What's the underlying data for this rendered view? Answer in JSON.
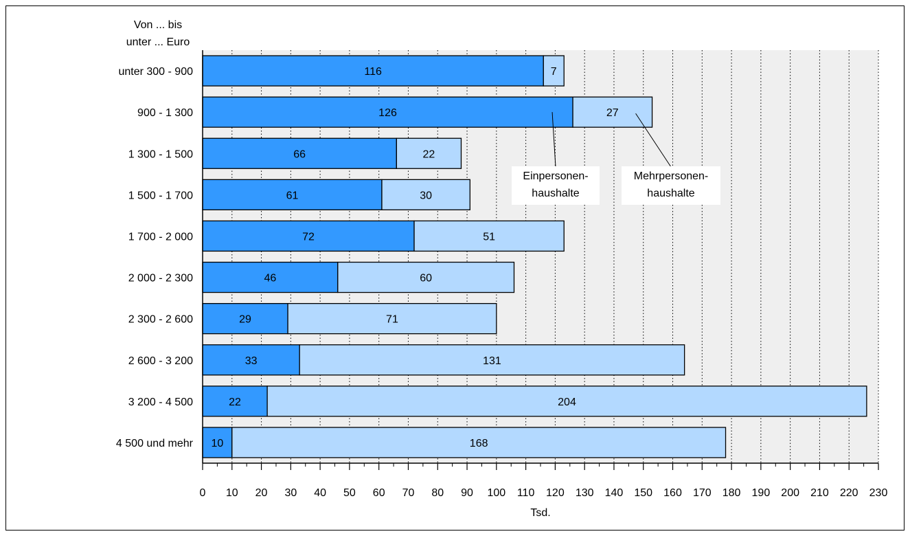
{
  "chart_data": {
    "type": "bar",
    "orientation": "horizontal",
    "stacked": true,
    "category_axis_title": [
      "Von ... bis",
      "unter ... Euro"
    ],
    "xlabel": "Tsd.",
    "xlim": [
      0,
      230
    ],
    "x_tick_step": 10,
    "grid": "vertical dotted",
    "categories": [
      "unter 300 - 900",
      "900 - 1 300",
      "1 300 - 1 500",
      "1 500 - 1 700",
      "1 700 - 2 000",
      "2 000 - 2 300",
      "2 300 - 2 600",
      "2 600 - 3 200",
      "3 200 - 4 500",
      "4 500 und mehr"
    ],
    "series": [
      {
        "name": "Einpersonen-haushalte",
        "label_lines": [
          "Einpersonen-",
          "haushalte"
        ],
        "color": "#3399ff",
        "values": [
          116,
          126,
          66,
          61,
          72,
          46,
          29,
          33,
          22,
          10
        ]
      },
      {
        "name": "Mehrpersonen-haushalte",
        "label_lines": [
          "Mehrpersonen-",
          "haushalte"
        ],
        "color": "#b3d9ff",
        "values": [
          7,
          27,
          22,
          30,
          51,
          60,
          71,
          131,
          204,
          168
        ]
      }
    ]
  }
}
